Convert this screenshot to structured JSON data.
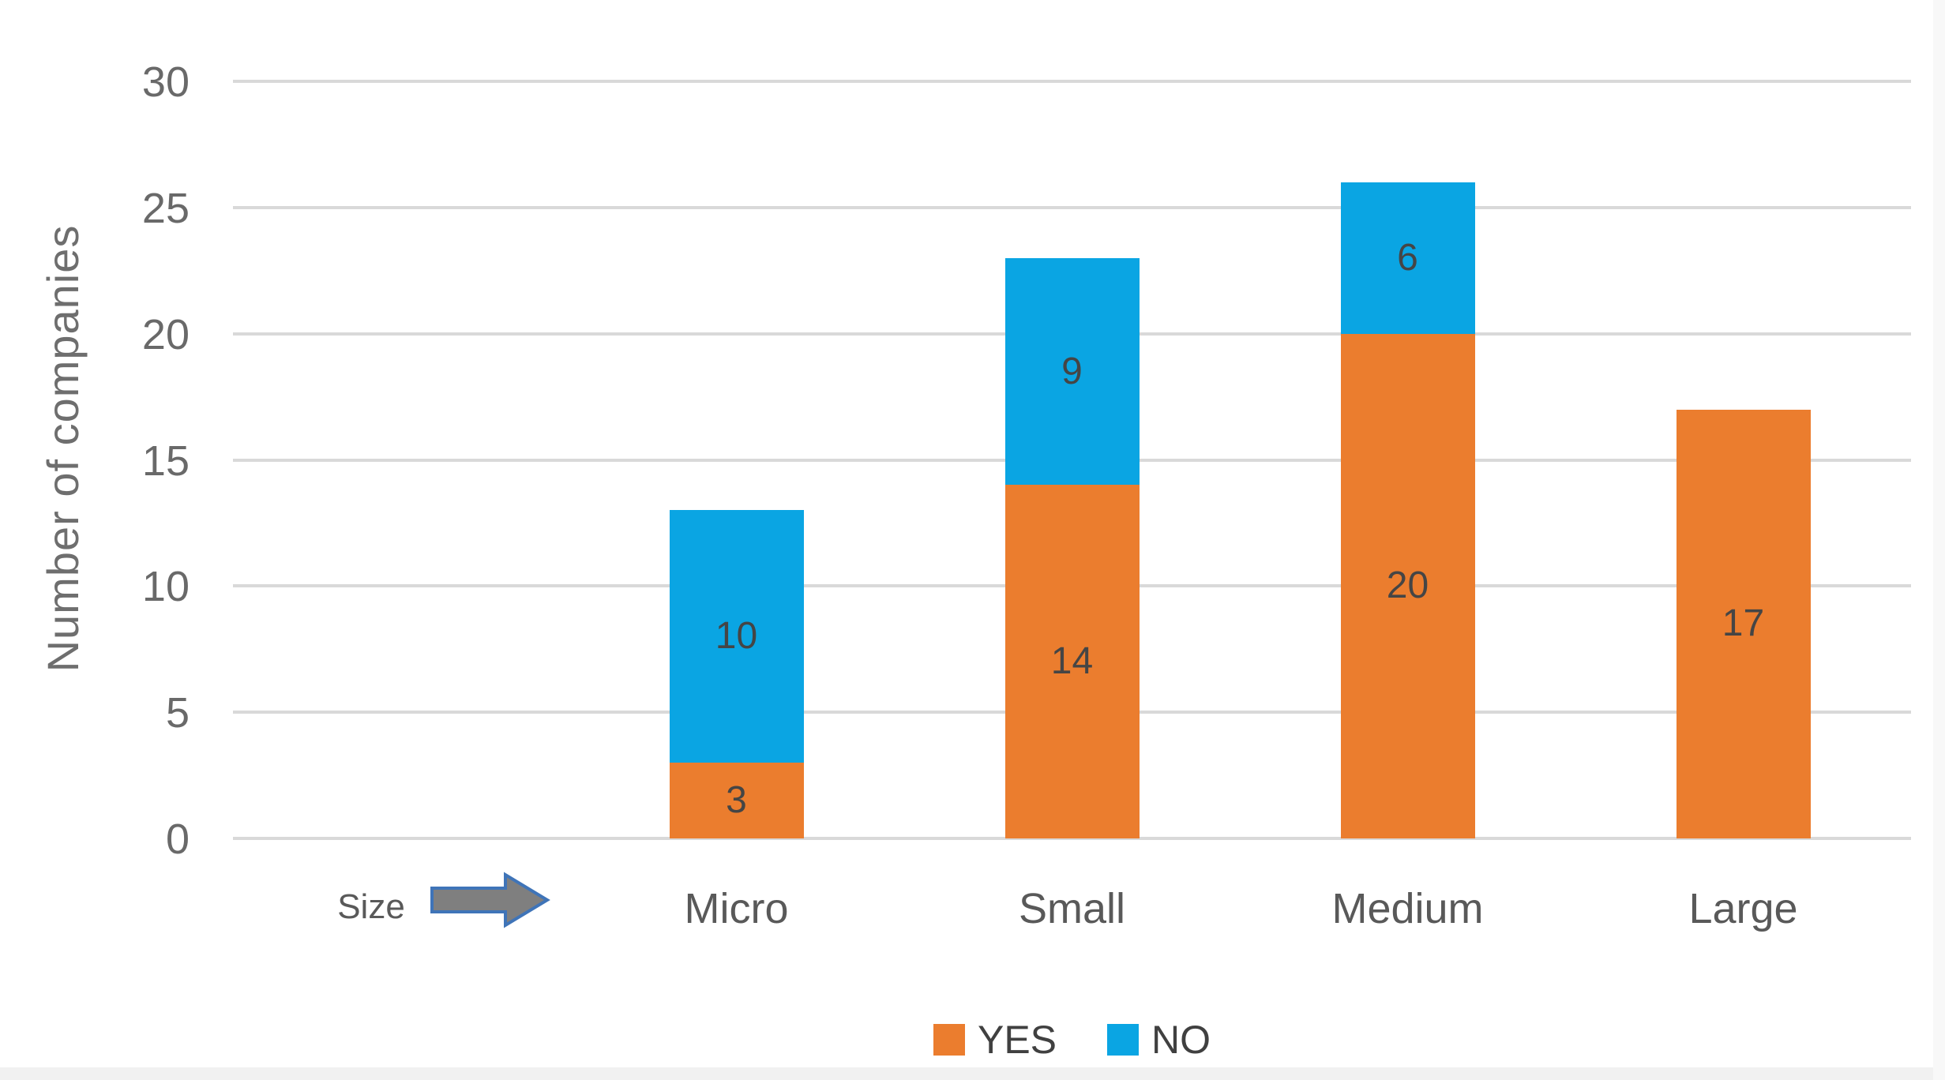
{
  "chart_data": {
    "type": "bar",
    "stacked": true,
    "title": "",
    "xlabel": "",
    "ylabel": "Number of companies",
    "categories": [
      "Micro",
      "Small",
      "Medium",
      "Large"
    ],
    "series": [
      {
        "name": "YES",
        "color": "#eb7d2e",
        "values": [
          3,
          14,
          20,
          17
        ]
      },
      {
        "name": "NO",
        "color": "#0aa5e3",
        "values": [
          10,
          9,
          6,
          0
        ]
      }
    ],
    "totals": [
      13,
      23,
      26,
      17
    ],
    "yticks": [
      0,
      5,
      10,
      15,
      20,
      25,
      30
    ],
    "ylim": [
      0,
      30
    ],
    "grid": true,
    "legend_position": "bottom-center",
    "x_annotation": {
      "label": "Size",
      "icon": "right-arrow"
    }
  },
  "colors": {
    "yes": "#eb7d2e",
    "no": "#0aa5e3",
    "gridline": "#d9d9d9",
    "axis_text": "#696969",
    "category_text": "#595959",
    "bar_label_text": "#454545",
    "legend_text": "#404040",
    "arrow_fill": "#7f7f7f",
    "arrow_stroke": "#3f74b8"
  }
}
